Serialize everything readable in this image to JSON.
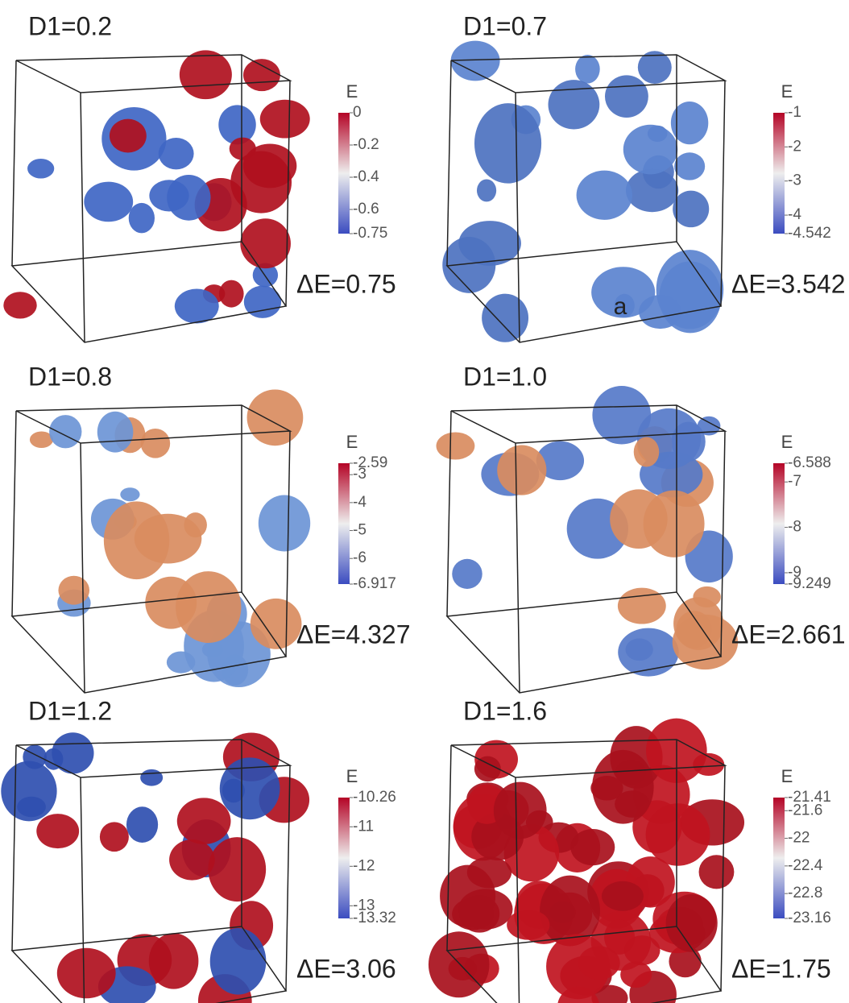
{
  "figure": {
    "label": "a",
    "panels": [
      {
        "title": "D1=0.2",
        "colorbar": {
          "label": "E",
          "ticks": [
            0,
            -0.2,
            -0.4,
            -0.6,
            -0.75
          ]
        },
        "delta": "ΔE=0.75"
      },
      {
        "title": "D1=0.7",
        "colorbar": {
          "label": "E",
          "ticks": [
            -1,
            -2,
            -3,
            -4,
            -4.542
          ]
        },
        "delta": "ΔE=3.542"
      },
      {
        "title": "D1=0.8",
        "colorbar": {
          "label": "E",
          "ticks": [
            -2.59,
            -3,
            -4,
            -5,
            -6,
            -6.917
          ]
        },
        "delta": "ΔE=4.327"
      },
      {
        "title": "D1=1.0",
        "colorbar": {
          "label": "E",
          "ticks": [
            -6.588,
            -7,
            -8,
            -9,
            -9.249
          ]
        },
        "delta": "ΔE=2.661"
      },
      {
        "title": "D1=1.2",
        "colorbar": {
          "label": "E",
          "ticks": [
            -10.26,
            -11,
            -12,
            -13,
            -13.32
          ]
        },
        "delta": "ΔE=3.06"
      },
      {
        "title": "D1=1.6",
        "colorbar": {
          "label": "E",
          "ticks": [
            -21.41,
            -21.6,
            -22,
            -22.4,
            -22.8,
            -23.16
          ]
        },
        "delta": "ΔE=1.75"
      }
    ]
  }
}
